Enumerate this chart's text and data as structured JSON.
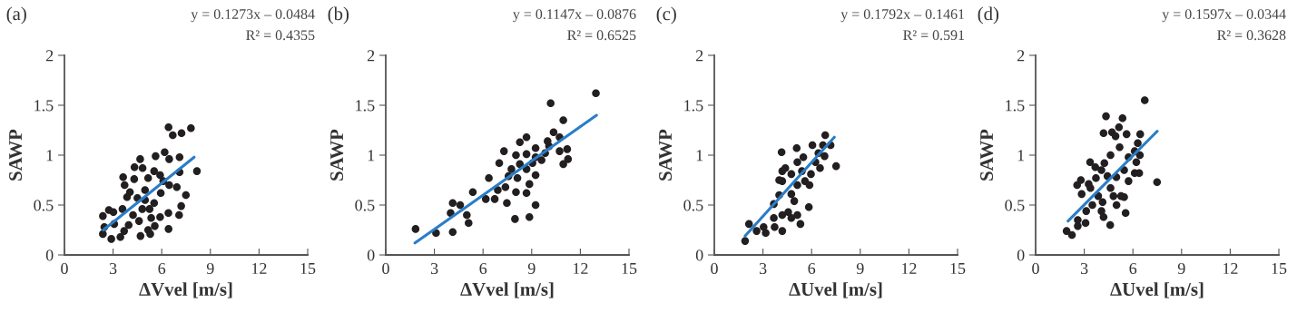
{
  "chart_data": [
    {
      "type": "scatter",
      "title": "(a)",
      "xlabel": "ΔVvel [m/s]",
      "ylabel": "SAWP",
      "xlim": [
        0,
        15
      ],
      "ylim": [
        0,
        2
      ],
      "xticks": [
        0,
        3,
        6,
        9,
        12,
        15
      ],
      "yticks": [
        0,
        0.5,
        1,
        1.5,
        2
      ],
      "grid": false,
      "annotations": [
        "y = 0.1273x – 0.0484",
        "R² = 0.4355"
      ],
      "series": [
        {
          "marker": "circle",
          "color": "#231f20",
          "x": [
            6.42,
            6.68,
            7.22,
            7.8,
            6.18,
            5.62,
            4.67,
            4.32,
            8.17,
            7.1,
            6.46,
            5.53,
            5.9,
            4.82,
            3.62,
            3.71,
            4.3,
            4.04,
            3.86,
            4.97,
            5.16,
            6.09,
            7.1,
            6.93,
            7.49,
            6.46,
            7.2,
            7.07,
            5.94,
            5.53,
            5.25,
            4.8,
            5.35,
            5.9,
            6.41,
            5.57,
            6.42,
            4.69,
            5.16,
            5.29,
            4.23,
            3.96,
            3.68,
            3.45,
            2.89,
            2.37,
            2.46,
            2.37,
            2.74,
            3.02,
            3.58,
            3.07,
            4.6,
            4.97,
            4.5
          ],
          "values": [
            1.28,
            1.2,
            1.22,
            1.27,
            1.03,
            0.99,
            0.96,
            0.88,
            0.84,
            0.98,
            0.96,
            0.84,
            0.8,
            0.87,
            0.78,
            0.7,
            0.76,
            0.63,
            0.58,
            0.65,
            0.77,
            0.74,
            0.83,
            0.68,
            0.6,
            0.7,
            0.49,
            0.4,
            0.62,
            0.52,
            0.46,
            0.46,
            0.37,
            0.38,
            0.42,
            0.29,
            0.26,
            0.19,
            0.25,
            0.21,
            0.4,
            0.3,
            0.24,
            0.18,
            0.16,
            0.21,
            0.28,
            0.39,
            0.45,
            0.43,
            0.46,
            0.31,
            0.34,
            0.55,
            0.57
          ]
        },
        {
          "type": "line",
          "marker": "none",
          "color": "#2a7dc8",
          "x": [
            2.4,
            8.0
          ],
          "values": [
            0.25,
            0.98
          ]
        }
      ]
    },
    {
      "type": "scatter",
      "title": "(b)",
      "xlabel": "ΔVvel [m/s]",
      "ylabel": "SAWP",
      "xlim": [
        0,
        15
      ],
      "ylim": [
        0,
        2
      ],
      "xticks": [
        0,
        3,
        6,
        9,
        12,
        15
      ],
      "yticks": [
        0,
        0.5,
        1,
        1.5,
        2
      ],
      "grid": false,
      "annotations": [
        "y = 0.1147x – 0.0876",
        "R² = 0.6525"
      ],
      "series": [
        {
          "marker": "circle",
          "color": "#231f20",
          "x": [
            12.96,
            10.17,
            10.95,
            10.35,
            10.72,
            11.19,
            11.24,
            10.95,
            10.72,
            10.07,
            9.83,
            9.24,
            8.68,
            8.27,
            7.29,
            8.03,
            8.68,
            9.05,
            8.68,
            9.24,
            8.27,
            7.75,
            7.0,
            7.57,
            8.12,
            8.86,
            8.68,
            9.24,
            8.03,
            7.38,
            6.91,
            6.36,
            6.72,
            6.17,
            7.47,
            7.97,
            8.86,
            5.37,
            4.59,
            4.13,
            4.0,
            5.0,
            5.11,
            4.13,
            3.1,
            1.84,
            9.61,
            9.98,
            9.24
          ],
          "values": [
            1.62,
            1.52,
            1.35,
            1.23,
            1.18,
            1.06,
            0.96,
            0.91,
            1.04,
            1.09,
            1.02,
            1.07,
            1.18,
            1.13,
            1.04,
            1.0,
            1.01,
            0.92,
            0.86,
            0.8,
            0.91,
            0.86,
            0.92,
            0.79,
            0.77,
            0.71,
            0.62,
            0.5,
            0.63,
            0.68,
            0.65,
            0.77,
            0.56,
            0.56,
            0.52,
            0.36,
            0.38,
            0.63,
            0.5,
            0.52,
            0.42,
            0.4,
            0.32,
            0.23,
            0.22,
            0.26,
            0.95,
            1.14,
            0.98
          ]
        },
        {
          "type": "line",
          "marker": "none",
          "color": "#2a7dc8",
          "x": [
            1.8,
            13.0
          ],
          "values": [
            0.12,
            1.4
          ]
        }
      ]
    },
    {
      "type": "scatter",
      "title": "(c)",
      "xlabel": "ΔUvel [m/s]",
      "ylabel": "SAWP",
      "xlim": [
        0,
        15
      ],
      "ylim": [
        0,
        2
      ],
      "xticks": [
        0,
        3,
        6,
        9,
        12,
        15
      ],
      "yticks": [
        0,
        0.5,
        1,
        1.5,
        2
      ],
      "grid": false,
      "annotations": [
        "y = 0.1792x – 0.1461",
        "R² = 0.591"
      ],
      "series": [
        {
          "marker": "circle",
          "color": "#231f20",
          "x": [
            1.9,
            2.14,
            2.61,
            3.04,
            3.17,
            3.67,
            3.67,
            3.72,
            4.19,
            4.19,
            4.56,
            4.75,
            5.12,
            5.31,
            5.83,
            4.0,
            4.19,
            4.19,
            4.15,
            4.75,
            4.75,
            4.93,
            5.12,
            5.12,
            5.08,
            5.49,
            5.59,
            5.87,
            5.96,
            6.05,
            6.24,
            6.52,
            6.42,
            6.8,
            6.84,
            7.17,
            7.51,
            6.7,
            4.38,
            5.4,
            4.0
          ],
          "values": [
            0.14,
            0.31,
            0.24,
            0.28,
            0.22,
            0.51,
            0.37,
            0.28,
            0.24,
            0.4,
            0.43,
            0.37,
            0.4,
            0.31,
            0.48,
            0.6,
            0.74,
            0.84,
            1.03,
            0.81,
            0.61,
            0.54,
            0.7,
            0.93,
            1.07,
            0.98,
            0.74,
            0.7,
            0.81,
            1.1,
            0.93,
            0.87,
            1.02,
            0.99,
            1.2,
            1.1,
            0.89,
            1.1,
            0.87,
            0.84,
            0.75
          ]
        },
        {
          "type": "line",
          "marker": "none",
          "color": "#2a7dc8",
          "x": [
            1.9,
            7.4
          ],
          "values": [
            0.19,
            1.18
          ]
        }
      ]
    },
    {
      "type": "scatter",
      "title": "(d)",
      "xlabel": "ΔUvel [m/s]",
      "ylabel": "SAWP",
      "xlim": [
        0,
        15
      ],
      "ylim": [
        0,
        2
      ],
      "xticks": [
        0,
        3,
        6,
        9,
        12,
        15
      ],
      "yticks": [
        0,
        0.5,
        1,
        1.5,
        2
      ],
      "grid": false,
      "annotations": [
        "y = 0.1597x – 0.0344",
        "R² = 0.3628"
      ],
      "series": [
        {
          "marker": "circle",
          "color": "#231f20",
          "x": [
            6.73,
            4.34,
            5.36,
            5.14,
            4.71,
            4.19,
            4.93,
            5.61,
            6.45,
            6.3,
            5.18,
            6.11,
            6.43,
            4.62,
            5.73,
            3.36,
            3.68,
            4.24,
            6.21,
            6.11,
            6.39,
            7.49,
            5.46,
            4.98,
            4.43,
            4.06,
            3.72,
            3.27,
            2.56,
            2.79,
            2.84,
            3.38,
            3.86,
            4.13,
            4.62,
            4.8,
            4.99,
            5.46,
            5.55,
            4.06,
            3.5,
            3.12,
            3.08,
            2.6,
            2.6,
            2.24,
            1.91,
            4.19,
            4.6,
            5.27,
            5.73
          ],
          "values": [
            1.55,
            1.39,
            1.37,
            1.28,
            1.23,
            1.22,
            1.19,
            1.21,
            1.21,
            1.12,
            1.08,
            1.04,
            1.0,
            1.0,
            0.98,
            0.93,
            0.88,
            0.92,
            0.93,
            0.82,
            0.82,
            0.73,
            0.85,
            0.78,
            0.79,
            0.85,
            0.77,
            0.71,
            0.7,
            0.75,
            0.61,
            0.67,
            0.59,
            0.53,
            0.67,
            0.59,
            0.5,
            0.58,
            0.42,
            0.44,
            0.5,
            0.44,
            0.32,
            0.35,
            0.29,
            0.2,
            0.24,
            0.38,
            0.3,
            0.59,
            0.74
          ]
        },
        {
          "type": "line",
          "marker": "none",
          "color": "#2a7dc8",
          "x": [
            2.0,
            7.5
          ],
          "values": [
            0.34,
            1.24
          ]
        }
      ]
    }
  ]
}
